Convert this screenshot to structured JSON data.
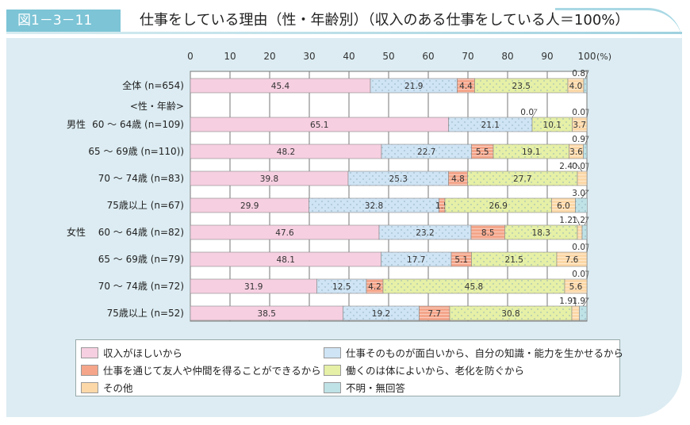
{
  "header": {
    "figure_label": "図1－3－11",
    "title": "仕事をしている理由（性・年齢別）（収入のある仕事をしている人＝100%）"
  },
  "chart_data": {
    "type": "bar",
    "orientation": "horizontal",
    "stacked": true,
    "xlim": [
      0,
      100
    ],
    "x_ticks": [
      "0",
      "10",
      "20",
      "30",
      "40",
      "50",
      "60",
      "70",
      "80",
      "90",
      "100"
    ],
    "x_unit": "(%)",
    "grid": true,
    "legend_position": "bottom",
    "group_header": "<性・年齢>",
    "groups": [
      {
        "label": "男性",
        "row": 1
      },
      {
        "label": "女性",
        "row": 5
      }
    ],
    "categories": [
      "全体 (n=654)",
      "60 ～ 64歳 (n=109)",
      "65 ～ 69歳 (n=110))",
      "70 ～ 74歳 (n=83)",
      "75歳以上 (n=67)",
      "60 ～ 64歳 (n=82)",
      "65 ～ 69歳 (n=79)",
      "70 ～ 74歳 (n=72)",
      "75歳以上 (n=52)"
    ],
    "series": [
      {
        "name": "収入がほしいから",
        "color": "#f6cfe0",
        "pattern": "solid",
        "values": [
          45.4,
          65.1,
          48.2,
          39.8,
          29.9,
          47.6,
          48.1,
          31.9,
          38.5
        ]
      },
      {
        "name": "仕事そのものが面白いから、自分の知識・能力を生かせるから",
        "color": "#cfe4f4",
        "pattern": "dots",
        "values": [
          21.9,
          21.1,
          22.7,
          25.3,
          32.8,
          23.2,
          17.7,
          12.5,
          19.2
        ]
      },
      {
        "name": "仕事を通じて友人や仲間を得ることができるから",
        "color": "#f4a58a",
        "pattern": "stripes",
        "values": [
          4.4,
          0.0,
          5.5,
          4.8,
          1.5,
          8.5,
          5.1,
          4.2,
          7.7
        ]
      },
      {
        "name": "働くのは体によいから、老化を防ぐから",
        "color": "#e6f0a6",
        "pattern": "dots",
        "values": [
          23.5,
          10.1,
          19.1,
          27.7,
          26.9,
          18.3,
          21.5,
          45.8,
          30.8
        ]
      },
      {
        "name": "その他",
        "color": "#fcd8a8",
        "pattern": "stripes",
        "values": [
          4.0,
          3.7,
          3.6,
          2.4,
          6.0,
          1.2,
          7.6,
          5.6,
          1.9
        ]
      },
      {
        "name": "不明・無回答",
        "color": "#bfe2e6",
        "pattern": "dots",
        "values": [
          0.8,
          0.0,
          0.9,
          0.0,
          3.0,
          1.2,
          0.0,
          0.0,
          1.9
        ]
      }
    ]
  }
}
